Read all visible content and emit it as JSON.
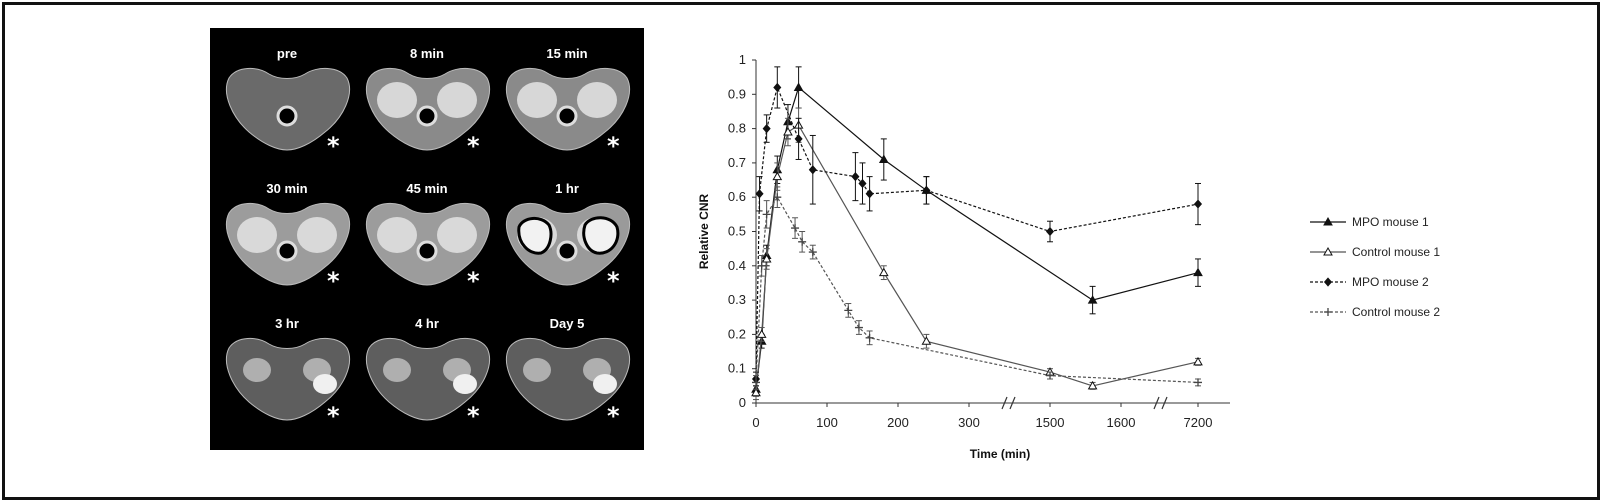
{
  "mri_panels": [
    {
      "label": "pre",
      "marker": "*",
      "stage": "pre"
    },
    {
      "label": "8 min",
      "marker": "*",
      "stage": "early"
    },
    {
      "label": "15 min",
      "marker": "*",
      "stage": "early"
    },
    {
      "label": "30 min",
      "marker": "*",
      "stage": "bright"
    },
    {
      "label": "45 min",
      "marker": "*",
      "stage": "bright"
    },
    {
      "label": "1 hr",
      "marker": "*",
      "stage": "outlined"
    },
    {
      "label": "3 hr",
      "marker": "*",
      "stage": "late"
    },
    {
      "label": "4 hr",
      "marker": "*",
      "stage": "late"
    },
    {
      "label": "Day 5",
      "marker": "*",
      "stage": "late"
    }
  ],
  "chart_data": {
    "type": "line",
    "title": "",
    "xlabel": "Time (min)",
    "ylabel": "Relative CNR",
    "ylim": [
      0,
      1
    ],
    "yticks": [
      "0",
      "0.1",
      "0.2",
      "0.3",
      "0.4",
      "0.5",
      "0.6",
      "0.7",
      "0.8",
      "0.9",
      "1"
    ],
    "xticks": [
      {
        "label": "0",
        "value": 0
      },
      {
        "label": "100",
        "value": 100
      },
      {
        "label": "200",
        "value": 200
      },
      {
        "label": "300",
        "value": 300
      },
      {
        "label": "1500",
        "value": 1500
      },
      {
        "label": "1600",
        "value": 1600
      },
      {
        "label": "7200",
        "value": 7200
      }
    ],
    "axis_breaks": [
      "between 300 and 1500",
      "between 1600 and 7200"
    ],
    "legend_position": "right",
    "grid": false,
    "series": [
      {
        "name": "MPO mouse 1",
        "marker": "triangle-filled",
        "line": "solid",
        "points": [
          {
            "x": 0,
            "y": 0.04,
            "err": 0.02
          },
          {
            "x": 8,
            "y": 0.18,
            "err": 0.02
          },
          {
            "x": 15,
            "y": 0.43,
            "err": 0.03
          },
          {
            "x": 30,
            "y": 0.68,
            "err": 0.04
          },
          {
            "x": 45,
            "y": 0.82,
            "err": 0.05
          },
          {
            "x": 60,
            "y": 0.92,
            "err": 0.06
          },
          {
            "x": 180,
            "y": 0.71,
            "err": 0.06
          },
          {
            "x": 240,
            "y": 0.62,
            "err": 0.04
          },
          {
            "x": 1560,
            "y": 0.3,
            "err": 0.04
          },
          {
            "x": 7200,
            "y": 0.38,
            "err": 0.04
          }
        ]
      },
      {
        "name": "Control mouse 1",
        "marker": "triangle-open",
        "line": "solid",
        "points": [
          {
            "x": 0,
            "y": 0.03,
            "err": 0.02
          },
          {
            "x": 8,
            "y": 0.2,
            "err": 0.02
          },
          {
            "x": 15,
            "y": 0.42,
            "err": 0.03
          },
          {
            "x": 30,
            "y": 0.66,
            "err": 0.04
          },
          {
            "x": 45,
            "y": 0.79,
            "err": 0.04
          },
          {
            "x": 60,
            "y": 0.81,
            "err": 0.05
          },
          {
            "x": 180,
            "y": 0.38,
            "err": 0.02
          },
          {
            "x": 240,
            "y": 0.18,
            "err": 0.02
          },
          {
            "x": 1500,
            "y": 0.09,
            "err": 0.01
          },
          {
            "x": 1560,
            "y": 0.05,
            "err": 0.01
          },
          {
            "x": 7200,
            "y": 0.12,
            "err": 0.01
          }
        ]
      },
      {
        "name": "MPO mouse 2",
        "marker": "diamond-filled",
        "line": "dashed",
        "points": [
          {
            "x": 0,
            "y": 0.07,
            "err": 0.02
          },
          {
            "x": 5,
            "y": 0.61,
            "err": 0.05
          },
          {
            "x": 15,
            "y": 0.8,
            "err": 0.04
          },
          {
            "x": 30,
            "y": 0.92,
            "err": 0.06
          },
          {
            "x": 60,
            "y": 0.77,
            "err": 0.06
          },
          {
            "x": 80,
            "y": 0.68,
            "err": 0.1
          },
          {
            "x": 140,
            "y": 0.66,
            "err": 0.07
          },
          {
            "x": 150,
            "y": 0.64,
            "err": 0.06
          },
          {
            "x": 160,
            "y": 0.61,
            "err": 0.05
          },
          {
            "x": 240,
            "y": 0.62,
            "err": 0.04
          },
          {
            "x": 1500,
            "y": 0.5,
            "err": 0.03
          },
          {
            "x": 7200,
            "y": 0.58,
            "err": 0.06
          }
        ]
      },
      {
        "name": "Control mouse 2",
        "marker": "plus",
        "line": "dashed",
        "points": [
          {
            "x": 0,
            "y": 0.06,
            "err": 0.02
          },
          {
            "x": 8,
            "y": 0.4,
            "err": 0.03
          },
          {
            "x": 15,
            "y": 0.55,
            "err": 0.04
          },
          {
            "x": 30,
            "y": 0.6,
            "err": 0.03
          },
          {
            "x": 55,
            "y": 0.51,
            "err": 0.03
          },
          {
            "x": 65,
            "y": 0.47,
            "err": 0.03
          },
          {
            "x": 80,
            "y": 0.44,
            "err": 0.02
          },
          {
            "x": 130,
            "y": 0.27,
            "err": 0.02
          },
          {
            "x": 145,
            "y": 0.22,
            "err": 0.02
          },
          {
            "x": 160,
            "y": 0.19,
            "err": 0.02
          },
          {
            "x": 1500,
            "y": 0.08,
            "err": 0.01
          },
          {
            "x": 7200,
            "y": 0.06,
            "err": 0.01
          }
        ]
      }
    ]
  }
}
